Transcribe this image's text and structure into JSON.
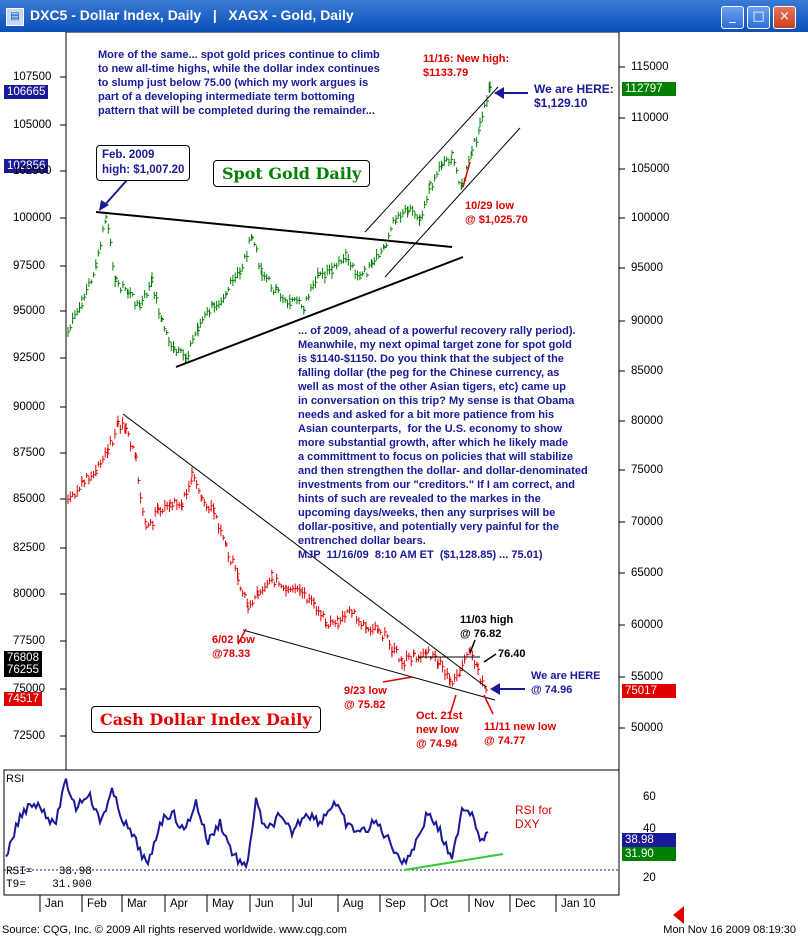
{
  "window": {
    "title": "DXC5 - Dollar Index, Daily   |   XAGX - Gold, Daily",
    "buttons": [
      "_",
      "□",
      "×"
    ]
  },
  "left_axis": {
    "ticks": [
      "107500",
      "105000",
      "102500",
      "100000",
      "97500",
      "95000",
      "92500",
      "90000",
      "87500",
      "85000",
      "82500",
      "80000",
      "77500",
      "75000",
      "72500"
    ],
    "badges": [
      {
        "label": "106665",
        "bg": "#1a1a99",
        "fg": "#ffffff"
      },
      {
        "label": "102856",
        "bg": "#1a1a99",
        "fg": "#ffffff"
      },
      {
        "label": "76808",
        "bg": "#000000",
        "fg": "#ffffff"
      },
      {
        "label": "76255",
        "bg": "#000000",
        "fg": "#ffffff"
      },
      {
        "label": "74517",
        "bg": "#e00000",
        "fg": "#ffffff"
      }
    ]
  },
  "right_axis": {
    "ticks": [
      "115000",
      "110000",
      "105000",
      "100000",
      "95000",
      "90000",
      "85000",
      "80000",
      "75000",
      "70000",
      "65000",
      "60000",
      "55000",
      "50000"
    ],
    "badges": [
      {
        "label": "112797",
        "bg": "#008000",
        "fg": "#ffffff"
      },
      {
        "label": "75017",
        "bg": "#e00000",
        "fg": "#ffffff"
      }
    ],
    "rsi_ticks": [
      "60",
      "40",
      "20"
    ],
    "rsi_badges": [
      {
        "label": "38.98",
        "bg": "#1a1a99",
        "fg": "#ffffff"
      },
      {
        "label": "31.90",
        "bg": "#008000",
        "fg": "#ffffff"
      }
    ]
  },
  "months": [
    "Jan",
    "Feb",
    "Mar",
    "Apr",
    "May",
    "Jun",
    "Jul",
    "Aug",
    "Sep",
    "Oct",
    "Nov",
    "Dec",
    "Jan 10"
  ],
  "commentary_top": "More of the same... spot gold prices continue to climb\nto new all-time highs, while the dollar index continues\nto slump just below 75.00 (which my work argues is\npart of a developing intermediate term bottoming\npattern that will be completed during the remainder...",
  "commentary_middle": "... of 2009, ahead of a powerful recovery rally period).\nMeanwhile, my next opimal target zone for spot gold\nis $1140-$1150. Do you think that the subject of the\nfalling dollar (the peg for the Chinese currency, as\nwell as most of the other Asian tigers, etc) came up\nin conversation on this trip? My sense is that Obama\nneeds and asked for a bit more patience from his\nAsian counterparts,  for the U.S. economy to show\nmore substantial growth, after which he likely made\na committment to focus on policies that will stabilize\nand then strengthen the dollar- and dollar-denominated\ninvestments from our \"creditors.\" If I am correct, and\nhints of such are revealed to the markes in the\nupcoming days/weeks, then any surprises will be\ndollar-positive, and potentially very painful for the\nentrenched dollar bears.\nMJP  11/16/09  8:10 AM ET  ($1,128.85) ... 75.01)",
  "annotations": {
    "new_high": "11/16: New high:\n$1133.79",
    "we_are_here_gold": "We are HERE:\n$1,129.10",
    "feb_high": "Feb. 2009\nhigh: $1,007.20",
    "gold_label": "Spot Gold Daily",
    "oct29_low": "10/29 low\n@ $1,025.70",
    "jun02_low": "6/02 low\n@78.33",
    "sep23_low": "9/23 low\n@ 75.82",
    "oct21_low": "Oct. 21st\nnew low\n@ 74.94",
    "nov11_low": "11/11 new low\n@ 74.77",
    "nov03_high": "11/03 high\n@ 76.82",
    "level_7640": "76.40",
    "we_are_here_dxy": "We are HERE\n@ 74.96",
    "dxy_label": "Cash Dollar Index Daily",
    "rsi_note": "RSI for\nDXY"
  },
  "rsi_panel": {
    "title": "RSI",
    "readout1": "RSI=    38.98",
    "readout2": "T9=    31.900"
  },
  "footer": {
    "source": "Source: CQG, Inc. © 2009 All rights reserved worldwide.  www.cqg.com",
    "timestamp": "Mon Nov 16 2009 08:19:30"
  },
  "colors": {
    "gold_series": "#008000",
    "dollar_series": "#e00000",
    "rsi_line": "#1a1a99",
    "text_blue": "#1a1a99",
    "text_red": "#e00000"
  }
}
